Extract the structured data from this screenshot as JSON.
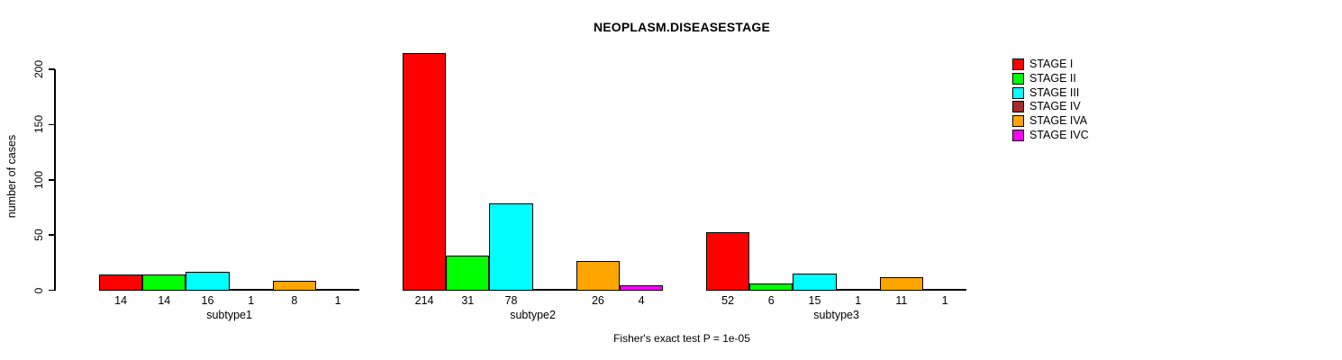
{
  "chart_data": {
    "type": "bar",
    "title": "NEOPLASM.DISEASESTAGE",
    "xlabel": "",
    "ylabel": "number of cases",
    "ylim": [
      0,
      200
    ],
    "yticks": [
      0,
      50,
      100,
      150,
      200
    ],
    "grid": false,
    "legend_position": "right",
    "categories": [
      "subtype1",
      "subtype2",
      "subtype3"
    ],
    "series": [
      {
        "name": "STAGE I",
        "color": "#FF0000",
        "values": [
          14,
          214,
          52
        ]
      },
      {
        "name": "STAGE II",
        "color": "#00FF00",
        "values": [
          14,
          31,
          6
        ]
      },
      {
        "name": "STAGE III",
        "color": "#00FFFF",
        "values": [
          16,
          78,
          15
        ]
      },
      {
        "name": "STAGE IV",
        "color": "#A52A2A",
        "values": [
          1,
          0,
          1
        ]
      },
      {
        "name": "STAGE IVA",
        "color": "#FFA500",
        "values": [
          8,
          26,
          11
        ]
      },
      {
        "name": "STAGE IVC",
        "color": "#FF00FF",
        "values": [
          1,
          4,
          1
        ]
      }
    ],
    "bar_labels": [
      [
        "14",
        "14",
        "16",
        "1",
        "8",
        "1"
      ],
      [
        "214",
        "31",
        "78",
        "",
        "26",
        "4"
      ],
      [
        "52",
        "6",
        "15",
        "1",
        "11",
        "1"
      ]
    ],
    "annotation": "Fisher's exact test P = 1e-05",
    "axis_color": "#000000",
    "background_color": "#FFFFFF"
  }
}
